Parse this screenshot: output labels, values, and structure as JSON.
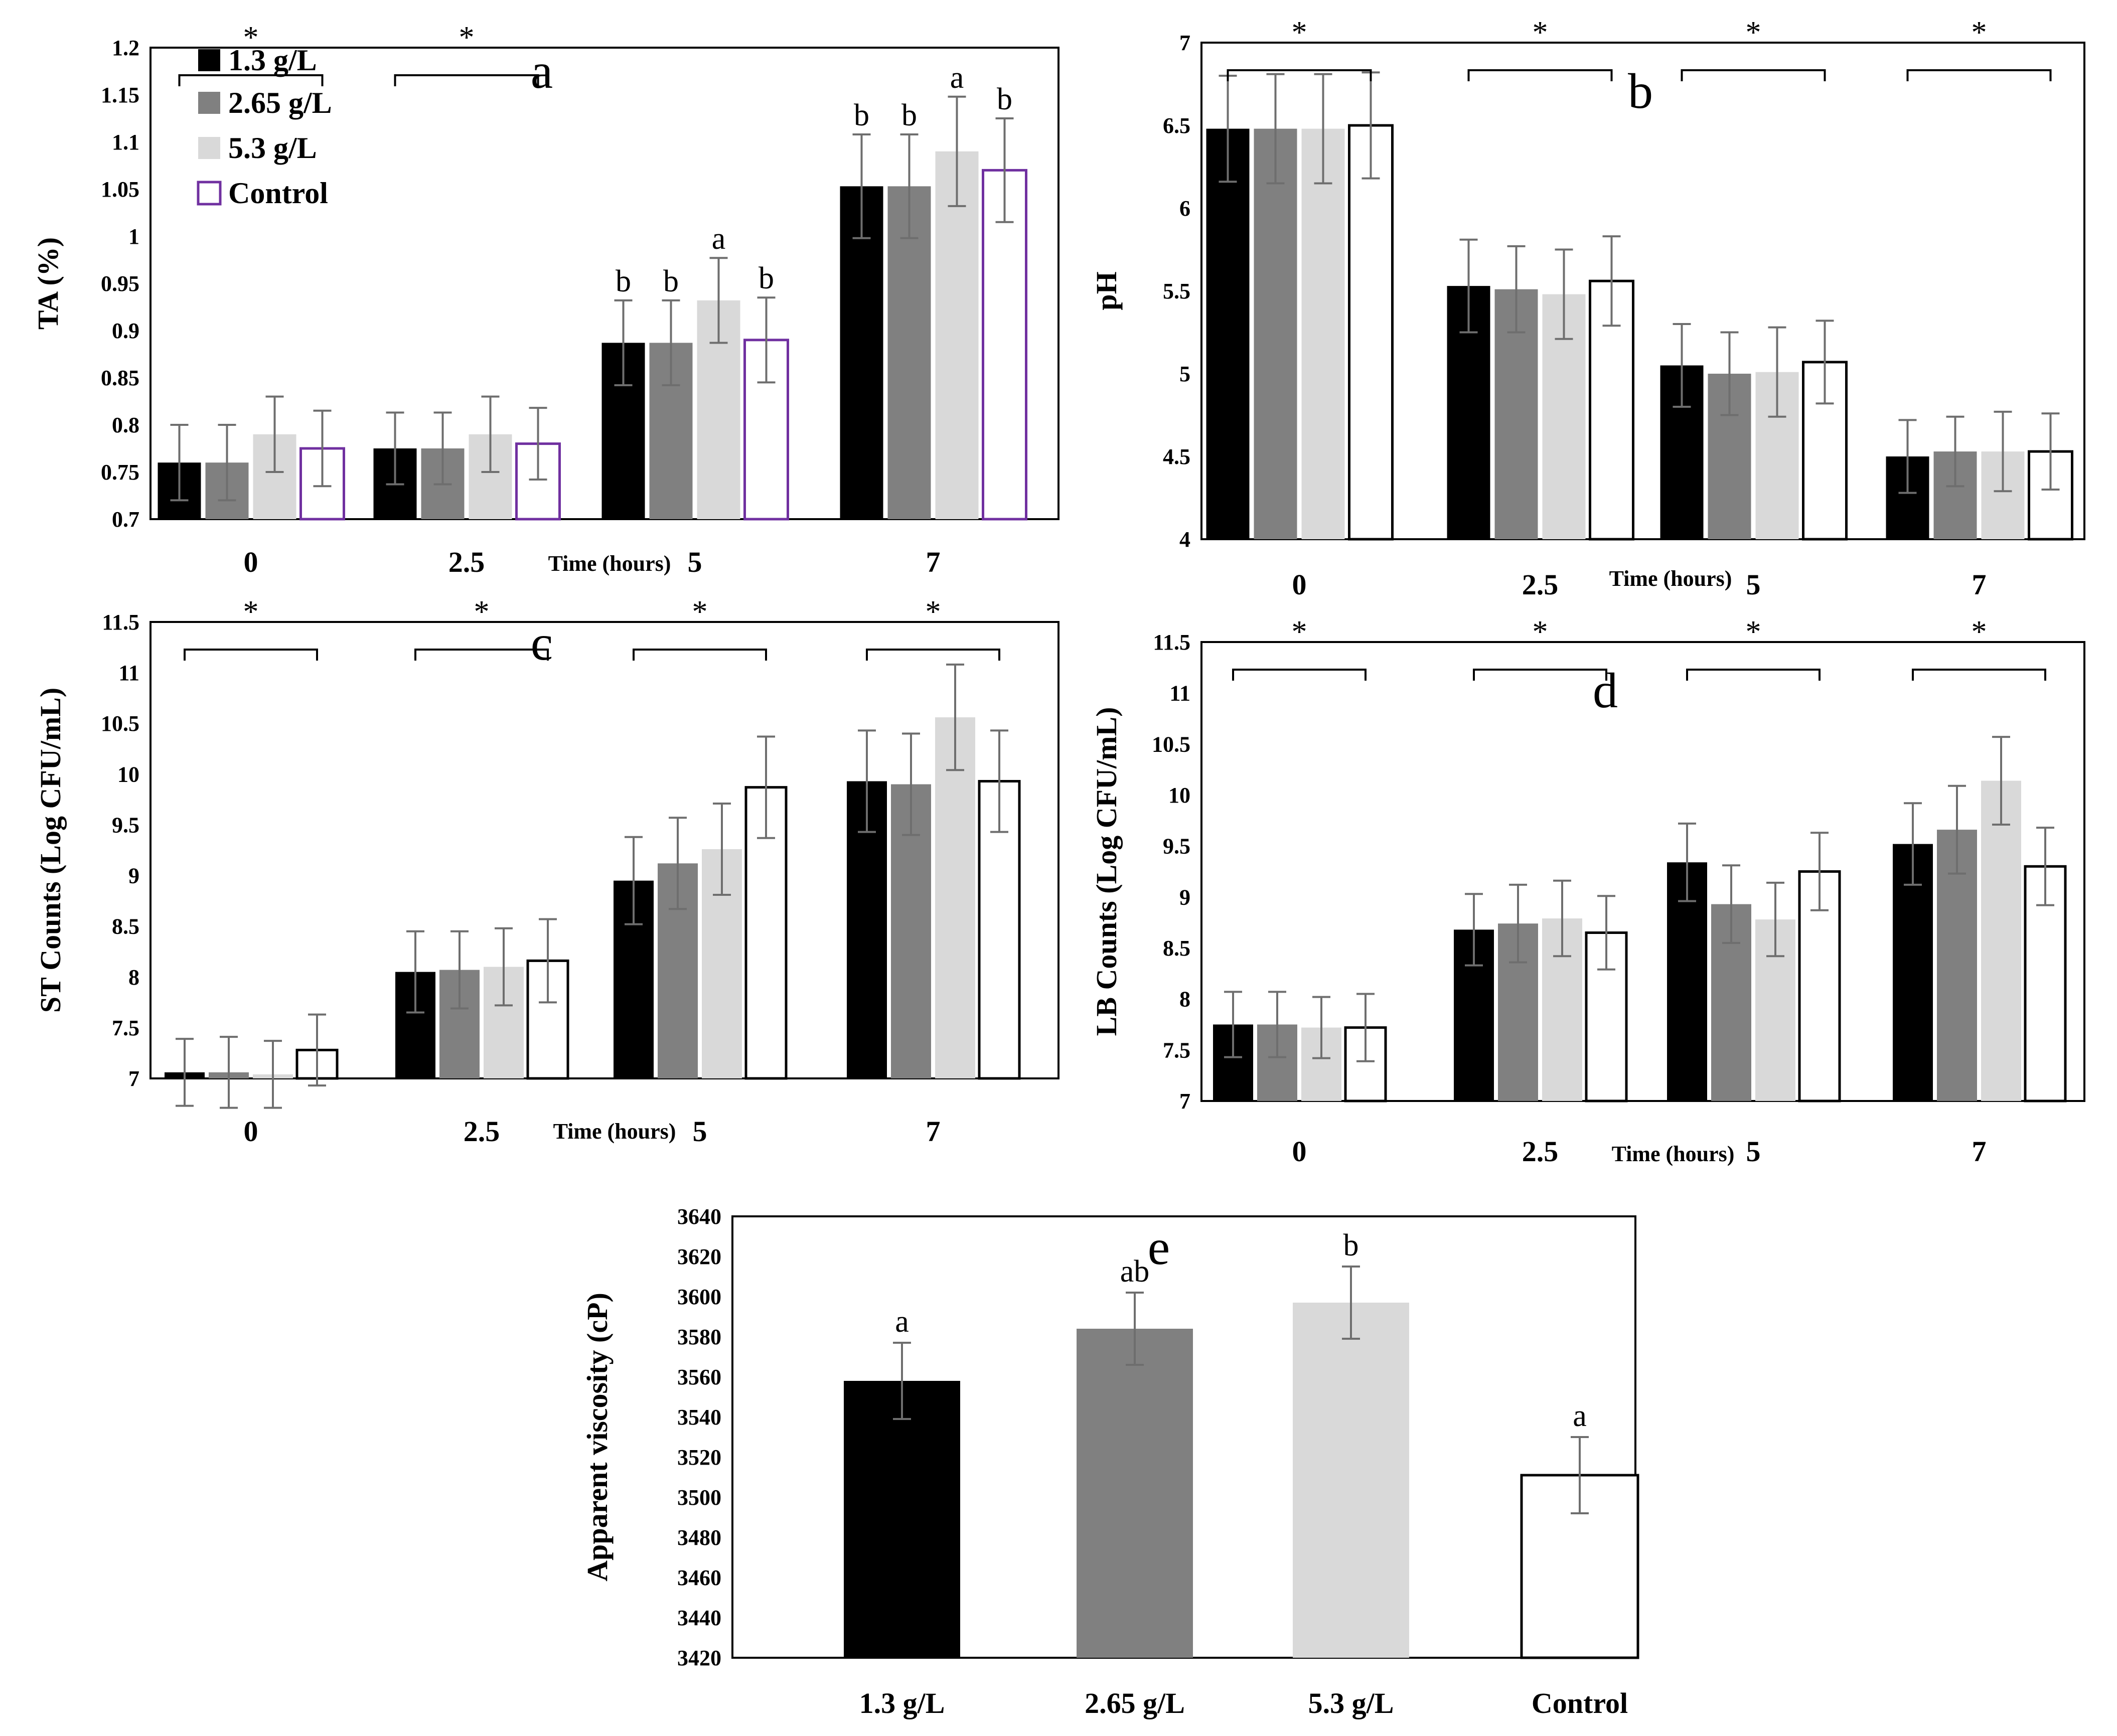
{
  "colors": {
    "s1": "#000000",
    "s2": "#808080",
    "s3": "#d9d9d9",
    "s4": "#ffffff",
    "control_edge_a": "#7030a0",
    "error_bar": "#6e6e6e"
  },
  "legend": {
    "items": [
      "1.3 g/L",
      "2.65 g/L",
      "5.3 g/L",
      "Control"
    ]
  },
  "chart_data": [
    {
      "id": "a",
      "type": "bar",
      "panel_label": "a",
      "categories": [
        "0",
        "2.5",
        "5",
        "7"
      ],
      "series": [
        {
          "name": "1.3 g/L",
          "values": [
            0.76,
            0.775,
            0.887,
            1.053
          ],
          "errors": [
            0.04,
            0.038,
            0.045,
            0.055
          ],
          "letters": [
            "",
            "",
            "b",
            "b"
          ]
        },
        {
          "name": "2.65 g/L",
          "values": [
            0.76,
            0.775,
            0.887,
            1.053
          ],
          "errors": [
            0.04,
            0.038,
            0.045,
            0.055
          ],
          "letters": [
            "",
            "",
            "b",
            "b"
          ]
        },
        {
          "name": "5.3 g/L",
          "values": [
            0.79,
            0.79,
            0.932,
            1.09
          ],
          "errors": [
            0.04,
            0.04,
            0.045,
            0.058
          ],
          "letters": [
            "",
            "",
            "a",
            "a"
          ]
        },
        {
          "name": "Control",
          "values": [
            0.775,
            0.78,
            0.89,
            1.07
          ],
          "errors": [
            0.04,
            0.038,
            0.045,
            0.055
          ],
          "letters": [
            "",
            "",
            "b",
            "b"
          ]
        }
      ],
      "ylim": [
        0.7,
        1.2
      ],
      "yticks": [
        "0.7",
        "0.75",
        "0.8",
        "0.85",
        "0.9",
        "0.95",
        "1",
        "1.05",
        "1.1",
        "1.15",
        "1.2"
      ],
      "ylabel": "TA (%)",
      "xlabel": "Time (hours)",
      "brackets": [
        0,
        1
      ],
      "bracket_mark": "*"
    },
    {
      "id": "b",
      "type": "bar",
      "panel_label": "b",
      "categories": [
        "0",
        "2.5",
        "5",
        "7"
      ],
      "series": [
        {
          "name": "1.3 g/L",
          "values": [
            6.48,
            5.53,
            5.05,
            4.5
          ],
          "errors": [
            0.32,
            0.28,
            0.25,
            0.22
          ]
        },
        {
          "name": "2.65 g/L",
          "values": [
            6.48,
            5.51,
            5.0,
            4.53
          ],
          "errors": [
            0.33,
            0.26,
            0.25,
            0.21
          ]
        },
        {
          "name": "5.3 g/L",
          "values": [
            6.48,
            5.48,
            5.01,
            4.53
          ],
          "errors": [
            0.33,
            0.27,
            0.27,
            0.24
          ]
        },
        {
          "name": "Control",
          "values": [
            6.5,
            5.56,
            5.07,
            4.53
          ],
          "errors": [
            0.32,
            0.27,
            0.25,
            0.23
          ]
        }
      ],
      "ylim": [
        4,
        7
      ],
      "yticks": [
        "4",
        "4.5",
        "5",
        "5.5",
        "6",
        "6.5",
        "7"
      ],
      "ylabel": "pH",
      "xlabel": "Time (hours)",
      "brackets": [
        0,
        1,
        2,
        3
      ],
      "bracket_mark": "*"
    },
    {
      "id": "c",
      "type": "bar",
      "panel_label": "c",
      "categories": [
        "0",
        "2.5",
        "5",
        "7"
      ],
      "series": [
        {
          "name": "1.3 g/L",
          "values": [
            7.06,
            8.05,
            8.95,
            9.93
          ],
          "errors": [
            0.33,
            0.4,
            0.43,
            0.5
          ]
        },
        {
          "name": "2.65 g/L",
          "values": [
            7.06,
            8.07,
            9.12,
            9.9
          ],
          "errors": [
            0.35,
            0.38,
            0.45,
            0.5
          ]
        },
        {
          "name": "5.3 g/L",
          "values": [
            7.04,
            8.1,
            9.26,
            10.56
          ],
          "errors": [
            0.33,
            0.38,
            0.45,
            0.52
          ]
        },
        {
          "name": "Control",
          "values": [
            7.28,
            8.16,
            9.87,
            9.93
          ],
          "errors": [
            0.35,
            0.41,
            0.5,
            0.5
          ]
        }
      ],
      "ylim": [
        7,
        11.5
      ],
      "yticks": [
        "7",
        "7.5",
        "8",
        "8.5",
        "9",
        "9.5",
        "10",
        "10.5",
        "11",
        "11.5"
      ],
      "ylabel": "ST Counts (Log CFU/mL)",
      "xlabel": "Time (hours)",
      "brackets": [
        0,
        1,
        2,
        3
      ],
      "bracket_mark": "*"
    },
    {
      "id": "d",
      "type": "bar",
      "panel_label": "d",
      "categories": [
        "0",
        "2.5",
        "5",
        "7"
      ],
      "series": [
        {
          "name": "1.3 g/L",
          "values": [
            7.75,
            8.68,
            9.34,
            9.52
          ],
          "errors": [
            0.32,
            0.35,
            0.38,
            0.4
          ]
        },
        {
          "name": "2.65 g/L",
          "values": [
            7.75,
            8.74,
            8.93,
            9.66
          ],
          "errors": [
            0.32,
            0.38,
            0.38,
            0.43
          ]
        },
        {
          "name": "5.3 g/L",
          "values": [
            7.72,
            8.79,
            8.78,
            10.14
          ],
          "errors": [
            0.3,
            0.37,
            0.36,
            0.43
          ]
        },
        {
          "name": "Control",
          "values": [
            7.72,
            8.65,
            9.25,
            9.3
          ],
          "errors": [
            0.33,
            0.36,
            0.38,
            0.38
          ]
        }
      ],
      "ylim": [
        7,
        11.5
      ],
      "yticks": [
        "7",
        "7.5",
        "8",
        "8.5",
        "9",
        "9.5",
        "10",
        "10.5",
        "11",
        "11.5"
      ],
      "ylabel": "LB Counts (Log CFU/mL)",
      "xlabel": "Time (hours)",
      "brackets": [
        0,
        1,
        2,
        3
      ],
      "bracket_mark": "*"
    },
    {
      "id": "e",
      "type": "bar",
      "panel_label": "e",
      "categories": [
        "1.3 g/L",
        "2.65 g/L",
        "5.3 g/L",
        "Control"
      ],
      "values": [
        3558,
        3584,
        3597,
        3511
      ],
      "errors": [
        19,
        18,
        18,
        19
      ],
      "letters": [
        "a",
        "ab",
        "b",
        "a"
      ],
      "ylim": [
        3420,
        3640
      ],
      "yticks": [
        "3420",
        "3440",
        "3460",
        "3480",
        "3500",
        "3520",
        "3540",
        "3560",
        "3580",
        "3600",
        "3620",
        "3640"
      ],
      "ylabel": "Apparent viscosity (cP)",
      "xlabel": ""
    }
  ]
}
